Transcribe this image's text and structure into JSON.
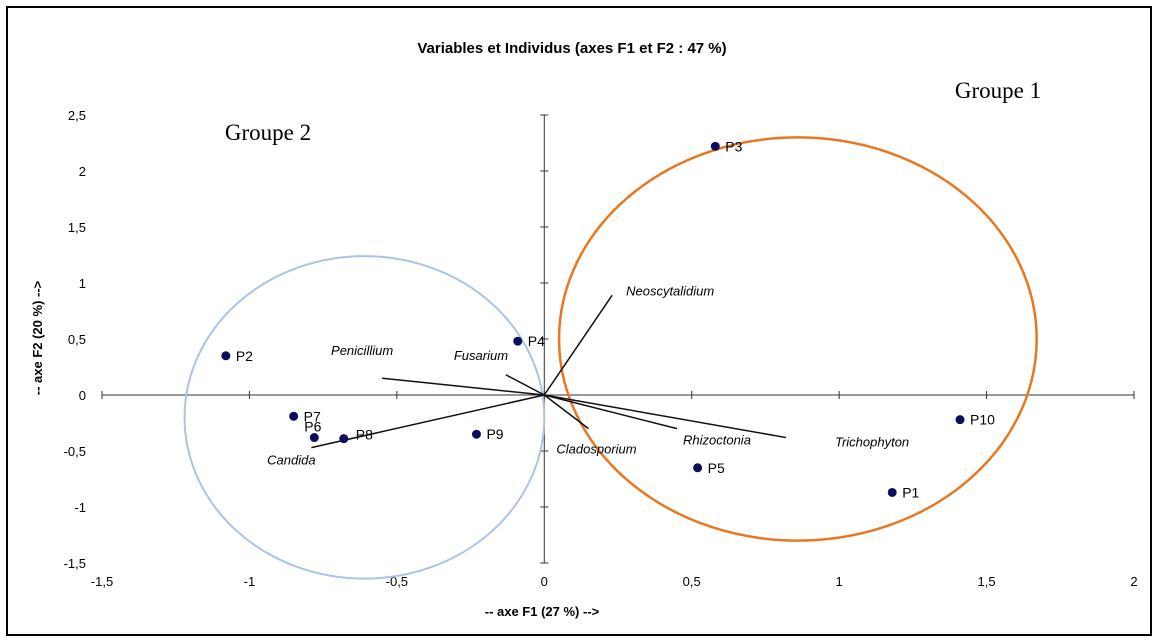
{
  "chart_data": {
    "type": "scatter",
    "title": "Variables et Individus (axes F1 et F2 : 47 %)",
    "xlabel": "-- axe F1 (27 %) -->",
    "ylabel": "-- axe F2 (20 %) -->",
    "xlim": [
      -1.5,
      2
    ],
    "ylim": [
      -1.5,
      2.5
    ],
    "xticks": [
      "-1,5",
      "-1",
      "-0,5",
      "0",
      "0,5",
      "1",
      "1,5",
      "2"
    ],
    "yticks": [
      "-1,5",
      "-1",
      "-0,5",
      "0",
      "0,5",
      "1",
      "1,5",
      "2",
      "2,5"
    ],
    "grid": false,
    "point_color": "#0d0d5c",
    "individuals": [
      {
        "label": "P1",
        "x": 1.18,
        "y": -0.87
      },
      {
        "label": "P2",
        "x": -1.08,
        "y": 0.35
      },
      {
        "label": "P3",
        "x": 0.58,
        "y": 2.22
      },
      {
        "label": "P4",
        "x": -0.09,
        "y": 0.48
      },
      {
        "label": "P5",
        "x": 0.52,
        "y": -0.65
      },
      {
        "label": "P6",
        "x": -0.78,
        "y": -0.38
      },
      {
        "label": "P7",
        "x": -0.85,
        "y": -0.19
      },
      {
        "label": "P8",
        "x": -0.68,
        "y": -0.39
      },
      {
        "label": "P9",
        "x": -0.23,
        "y": -0.35
      },
      {
        "label": "P10",
        "x": 1.41,
        "y": -0.22
      }
    ],
    "variables": [
      {
        "label": "Neoscytalidium",
        "x": 0.23,
        "y": 0.89
      },
      {
        "label": "Penicillium",
        "x": -0.55,
        "y": 0.15
      },
      {
        "label": "Fusarium",
        "x": -0.13,
        "y": 0.18
      },
      {
        "label": "Trichophyton",
        "x": 0.82,
        "y": -0.38
      },
      {
        "label": "Rhizoctonia",
        "x": 0.45,
        "y": -0.3
      },
      {
        "label": "Cladosporium",
        "x": 0.15,
        "y": -0.3
      },
      {
        "label": "Candida",
        "x": -0.79,
        "y": -0.47
      }
    ],
    "groups": [
      {
        "label": "Groupe 1",
        "color": "#e87722",
        "cx": 0.86,
        "cy": 0.5,
        "rx": 0.81,
        "ry": 1.8
      },
      {
        "label": "Groupe 2",
        "color": "#a9c4e4",
        "cx": -0.61,
        "cy": -0.2,
        "rx": 0.61,
        "ry": 1.44
      }
    ]
  }
}
